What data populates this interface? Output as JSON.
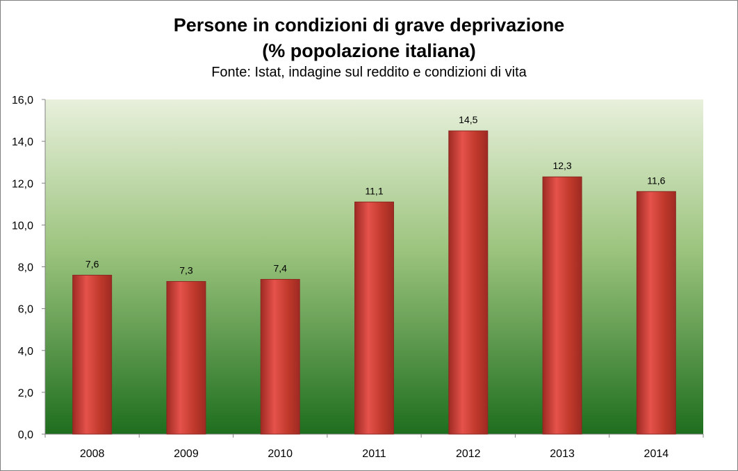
{
  "chart_data": {
    "type": "bar",
    "title": "Persone in condizioni di grave deprivazione",
    "title_line2": "(% popolazione italiana)",
    "subtitle": "Fonte:  Istat, indagine sul reddito e condizioni di vita",
    "categories": [
      "2008",
      "2009",
      "2010",
      "2011",
      "2012",
      "2013",
      "2014"
    ],
    "values": [
      7.6,
      7.3,
      7.4,
      11.1,
      14.5,
      12.3,
      11.6
    ],
    "data_labels": [
      "7,6",
      "7,3",
      "7,4",
      "11,1",
      "14,5",
      "12,3",
      "11,6"
    ],
    "ylim": [
      0,
      16
    ],
    "yticks": [
      0,
      2,
      4,
      6,
      8,
      10,
      12,
      14,
      16
    ],
    "ytick_labels": [
      "0,0",
      "2,0",
      "4,0",
      "6,0",
      "8,0",
      "10,0",
      "12,0",
      "14,0",
      "16,0"
    ],
    "xlabel": "",
    "ylabel": "",
    "grid": false,
    "legend": "none",
    "colors": {
      "bar": "#c0392b",
      "bar_light": "#e5524b",
      "bar_dark": "#9e2a23",
      "plot_top": "#e8f0dc",
      "plot_bottom": "#1e6e1e"
    }
  }
}
